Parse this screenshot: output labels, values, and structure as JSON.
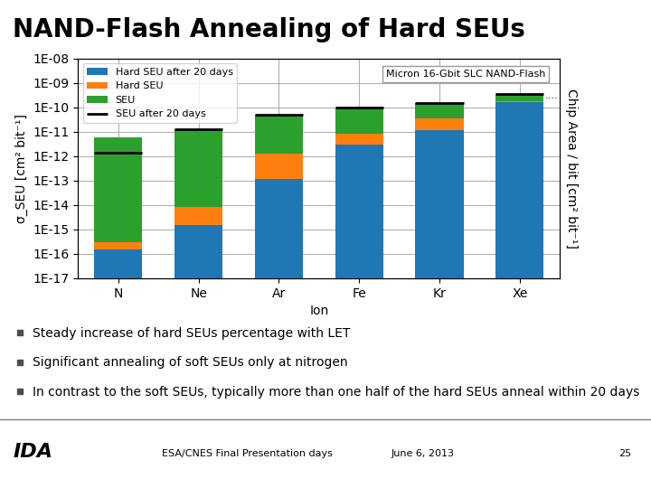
{
  "chart_data": {
    "type": "bar",
    "stacked": true,
    "log": "y",
    "title": "NAND-Flash Annealing of Hard SEUs",
    "xlabel": "Ion",
    "ylabel": "σ_SEU [cm² bit⁻¹]",
    "y2label": "Chip Area / bit [cm² bit⁻¹]",
    "categories": [
      "N",
      "Ne",
      "Ar",
      "Fe",
      "Kr",
      "Xe"
    ],
    "series": [
      {
        "name": "Hard SEU after 20 days",
        "values": [
          1.5e-16,
          1.5e-15,
          1.2e-13,
          3e-12,
          1.2e-11,
          1.6e-10
        ]
      },
      {
        "name": "Hard SEU",
        "values": [
          1.5e-16,
          6.5e-15,
          1.18e-12,
          5e-12,
          2.3e-11,
          2e-11
        ]
      },
      {
        "name": "SEU",
        "values": [
          5.9997e-12,
          1.2992e-11,
          4.87e-11,
          9.2e-11,
          1.15e-10,
          1.7e-10
        ]
      },
      {
        "name": "SEU after 20 days",
        "type": "scatter",
        "marker": "hline",
        "color": "#000000",
        "values": [
          1.4e-12,
          1.3e-11,
          5e-11,
          1e-10,
          1.5e-10,
          3.5e-10
        ]
      }
    ],
    "ylim": [
      1e-17,
      1e-08
    ],
    "yticks": [
      {
        "value": 1e-17,
        "label": "1E-17"
      },
      {
        "value": 1e-16,
        "label": "1E-16"
      },
      {
        "value": 1e-15,
        "label": "1E-15"
      },
      {
        "value": 1e-14,
        "label": "1E-14"
      },
      {
        "value": 1e-13,
        "label": "1E-13"
      },
      {
        "value": 1e-12,
        "label": "1E-12"
      },
      {
        "value": 1e-11,
        "label": "1E-11"
      },
      {
        "value": 1e-10,
        "label": "1E-10"
      },
      {
        "value": 1e-09,
        "label": "1E-09"
      },
      {
        "value": 1e-08,
        "label": "1E-08"
      }
    ],
    "y2lim": [
      1e-17,
      1e-08
    ],
    "y2ticks": [],
    "grid": true,
    "legend": "upper left",
    "annotations": [
      "Micron 16-Gbit SLC NAND-Flash",
      "....",
      "Steady increase of hard SEUs percentage with LET",
      "Significant annealing of soft SEUs only at nitrogen",
      "In contrast to the soft SEUs, typically more than one half of the hard SEUs anneal within 20 days",
      "IDA",
      "ESA/CNES Final Presentation days",
      "June 6, 2013",
      "25"
    ]
  }
}
